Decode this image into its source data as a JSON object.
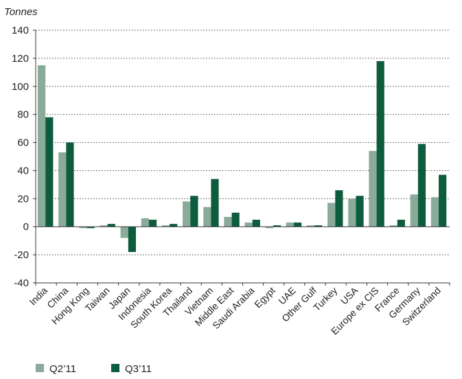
{
  "chart_data": {
    "type": "bar",
    "unit_label": "Tonnes",
    "categories": [
      "India",
      "China",
      "Hong Kong",
      "Taiwan",
      "Japan",
      "Indonesia",
      "South Korea",
      "Thailand",
      "Vietnam",
      "Middle East",
      "Saudi Arabia",
      "Egypt",
      "UAE",
      "Other Gulf",
      "Turkey",
      "USA",
      "Europe ex CIS",
      "France",
      "Germany",
      "Switzerland"
    ],
    "series": [
      {
        "name": "Q2’11",
        "color": "#8aaa9a",
        "values": [
          115,
          53,
          -1,
          1,
          -8,
          6,
          1,
          18,
          14,
          7,
          3,
          -1,
          3,
          1,
          17,
          20,
          54,
          1,
          23,
          21
        ]
      },
      {
        "name": "Q3’11",
        "color": "#0d5c3e",
        "values": [
          78,
          60,
          -1,
          2,
          -18,
          5,
          2,
          22,
          34,
          10,
          5,
          1,
          3,
          1,
          26,
          22,
          118,
          5,
          59,
          37
        ]
      }
    ],
    "ylim": [
      -40,
      140
    ],
    "yticks": [
      -40,
      -20,
      0,
      20,
      40,
      60,
      80,
      100,
      120,
      140
    ],
    "grid": true,
    "legend_position": "bottom-left"
  }
}
